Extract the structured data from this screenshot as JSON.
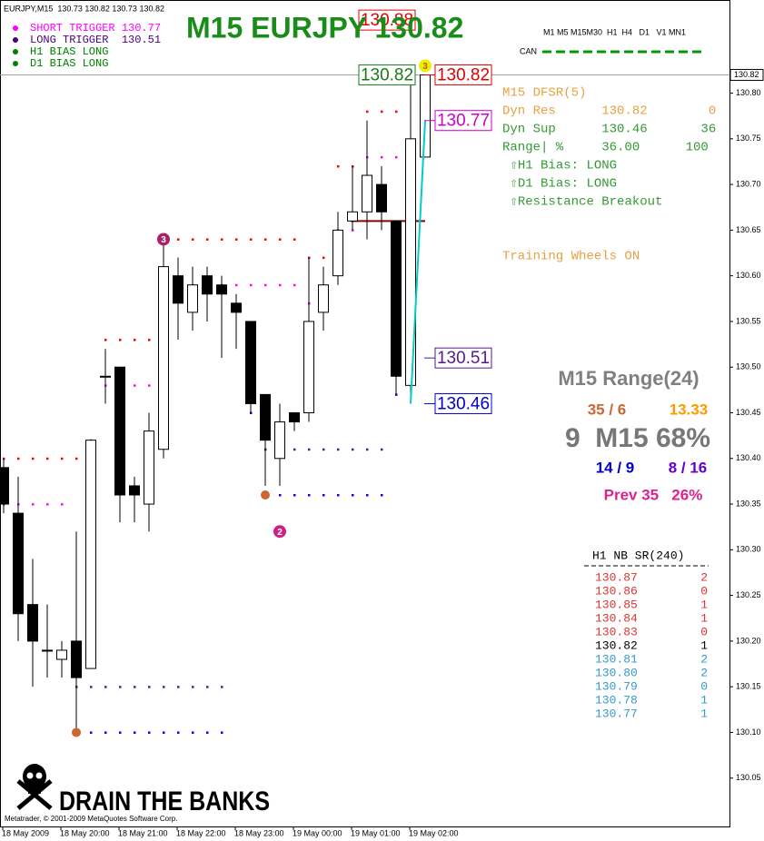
{
  "chart_data": {
    "type": "candlestick",
    "title": "M15 EURJPY 130.82",
    "header": "EURJPY,M15  130.73 130.82 130.73 130.82",
    "legend": [
      {
        "text": "SHORT TRIGGER 130.77",
        "color": "#ff00ff"
      },
      {
        "text": "LONG TRIGGER  130.51",
        "color": "#4b0082"
      },
      {
        "text": "H1 BIAS LONG",
        "color": "#008000"
      },
      {
        "text": "D1 BIAS LONG",
        "color": "#008000"
      }
    ],
    "timeframes": "M1 M5 M15M30  H1  H4   D1   V1 MN1",
    "can_label": "CAN",
    "categories": [
      "18 May 2009",
      null,
      null,
      null,
      "18 May 20:00",
      null,
      null,
      null,
      "18 May 21:00",
      null,
      null,
      null,
      "18 May 22:00",
      null,
      null,
      null,
      "18 May 23:00",
      null,
      null,
      null,
      "19 May 00:00",
      null,
      null,
      null,
      "19 May 01:00",
      null,
      null,
      null,
      "19 May 02:00",
      null
    ],
    "open": [
      130.39,
      130.34,
      130.24,
      130.19,
      130.18,
      130.2,
      130.17,
      130.49,
      130.5,
      130.37,
      130.35,
      130.41,
      130.6,
      130.56,
      130.6,
      130.59,
      130.57,
      130.55,
      130.47,
      130.4,
      130.45,
      130.45,
      130.56,
      130.6,
      130.66,
      130.67,
      130.7,
      130.66,
      130.48,
      130.73
    ],
    "high": [
      130.4,
      130.38,
      130.29,
      130.24,
      130.2,
      130.32,
      130.42,
      130.52,
      130.5,
      130.38,
      130.45,
      130.64,
      130.62,
      130.61,
      130.61,
      130.6,
      130.58,
      130.55,
      130.47,
      130.46,
      130.45,
      130.62,
      130.61,
      130.67,
      130.72,
      130.77,
      130.72,
      130.66,
      130.82,
      130.82
    ],
    "low": [
      130.34,
      130.2,
      130.15,
      130.16,
      130.16,
      130.1,
      130.17,
      130.46,
      130.33,
      130.33,
      130.32,
      130.4,
      130.53,
      130.54,
      130.55,
      130.51,
      130.52,
      130.45,
      130.37,
      130.37,
      130.43,
      130.44,
      130.54,
      130.59,
      130.65,
      130.64,
      130.65,
      130.47,
      130.46,
      130.73
    ],
    "close": [
      130.35,
      130.23,
      130.2,
      130.19,
      130.19,
      130.16,
      130.42,
      130.49,
      130.36,
      130.36,
      130.43,
      130.61,
      130.57,
      130.59,
      130.58,
      130.58,
      130.56,
      130.46,
      130.42,
      130.44,
      130.44,
      130.55,
      130.59,
      130.65,
      130.67,
      130.71,
      130.67,
      130.49,
      130.75,
      130.82
    ],
    "dot_series": [
      {
        "color": "#ff0000",
        "values": [
          130.4,
          130.4,
          130.4,
          130.4,
          130.4,
          130.4,
          130.4,
          130.53,
          130.53,
          130.53,
          130.53,
          null,
          130.64,
          130.64,
          130.64,
          130.64,
          130.64,
          130.64,
          130.64,
          130.64,
          130.64,
          130.62,
          130.62,
          130.72,
          130.72,
          130.78,
          130.78,
          130.78,
          null,
          null
        ]
      },
      {
        "color": "#ff00ff",
        "values": [
          130.35,
          130.35,
          130.35,
          130.35,
          130.35,
          null,
          130.42,
          130.48,
          130.48,
          130.48,
          130.48,
          null,
          130.59,
          130.59,
          130.59,
          130.59,
          130.59,
          130.59,
          130.59,
          130.59,
          130.59,
          130.57,
          130.57,
          130.65,
          130.65,
          130.73,
          130.73,
          130.73,
          null,
          null
        ]
      },
      {
        "color": "#551a8b",
        "values": [
          null,
          null,
          null,
          null,
          null,
          130.15,
          130.15,
          130.15,
          130.15,
          130.15,
          130.15,
          130.15,
          130.15,
          130.15,
          130.15,
          130.15,
          null,
          130.49,
          130.41,
          130.41,
          130.41,
          130.41,
          130.41,
          130.41,
          130.41,
          130.41,
          130.41,
          130.52,
          130.51,
          null
        ]
      },
      {
        "color": "#0000ff",
        "values": [
          null,
          null,
          null,
          null,
          null,
          130.1,
          130.1,
          130.1,
          130.1,
          130.1,
          130.1,
          130.1,
          130.1,
          130.1,
          130.1,
          130.1,
          null,
          130.45,
          130.36,
          130.36,
          130.36,
          130.36,
          130.36,
          130.36,
          130.36,
          130.36,
          130.36,
          130.47,
          null,
          null
        ]
      }
    ],
    "line_series": [
      {
        "color": "#00cccc",
        "values": [
          null,
          null,
          null,
          null,
          null,
          null,
          null,
          null,
          null,
          null,
          null,
          null,
          null,
          null,
          null,
          null,
          null,
          null,
          null,
          null,
          null,
          null,
          null,
          null,
          null,
          null,
          null,
          null,
          130.46,
          130.77
        ]
      }
    ],
    "markers": [
      {
        "index": 5,
        "value": 130.1,
        "color": "#cc6633"
      },
      {
        "index": 18,
        "value": 130.36,
        "color": "#cc6633"
      },
      {
        "index": 11,
        "value": 130.64,
        "color": "#aa2266",
        "label": "3"
      },
      {
        "index": 19,
        "value": 130.32,
        "color": "#cc2288",
        "label": "2"
      },
      {
        "index": 29,
        "value": 130.83,
        "color": "#eeee00",
        "label": "3"
      }
    ],
    "h_segments": [
      {
        "value": 130.66,
        "from": 24,
        "to": 29,
        "color": "#8b0000"
      }
    ],
    "last_price": 130.82,
    "price_labels": [
      {
        "value": 130.88,
        "color": "#e00000",
        "side": "left"
      },
      {
        "value": 130.82,
        "color": "#1a7a1a",
        "side": "left"
      },
      {
        "value": 130.82,
        "color": "#e00000",
        "side": "right"
      },
      {
        "value": 130.77,
        "color": "#cc00cc",
        "side": "right"
      },
      {
        "value": 130.51,
        "color": "#551a8b",
        "side": "right"
      },
      {
        "value": 130.46,
        "color": "#0000cc",
        "side": "right"
      }
    ],
    "info_panel": [
      {
        "text": "M15 DFSR(5)",
        "color": "#e8a040"
      },
      {
        "text": "Dyn Res      130.82        0",
        "color": "#e8a040"
      },
      {
        "text": "Dyn Sup      130.46       36",
        "color": "#339933"
      },
      {
        "text": "Range| %     36.00      100",
        "color": "#339933"
      },
      {
        "text": " ⇧H1 Bias: LONG",
        "color": "#339933"
      },
      {
        "text": " ⇧D1 Bias: LONG",
        "color": "#339933"
      },
      {
        "text": " ⇧Resistance Breakout",
        "color": "#339933"
      }
    ],
    "training": "Training Wheels ON",
    "range_panel": {
      "title": "M15 Range(24)",
      "row1": [
        "35 / 6",
        "13.33"
      ],
      "main": "9  M15 68%",
      "row2": [
        "14 / 9",
        "8 / 16"
      ],
      "prev": "Prev 35   26%"
    },
    "sr_table": {
      "title": "H1 NB SR(240)",
      "rows": [
        [
          "130.87",
          2,
          "#e03030"
        ],
        [
          "130.86",
          0,
          "#e03030"
        ],
        [
          "130.85",
          1,
          "#e03030"
        ],
        [
          "130.84",
          1,
          "#e03030"
        ],
        [
          "130.83",
          0,
          "#e03030"
        ],
        [
          "130.82",
          1,
          "#000000"
        ],
        [
          "130.81",
          2,
          "#3399cc"
        ],
        [
          "130.80",
          2,
          "#3399cc"
        ],
        [
          "130.79",
          0,
          "#3399cc"
        ],
        [
          "130.78",
          1,
          "#3399cc"
        ],
        [
          "130.77",
          1,
          "#3399cc"
        ]
      ]
    },
    "logo": "DRAIN THE BANKS",
    "copyright": "Metatrader, © 2001-2009 MetaQuotes Software Corp.",
    "ylim": [
      130.0,
      130.9
    ],
    "yticks": [
      130.05,
      {
        "value": 130.1,
        "label": "130.10"
      },
      130.15,
      {
        "value": 130.2,
        "label": "130.20"
      },
      130.25,
      {
        "value": 130.3,
        "label": "130.30"
      },
      130.35,
      {
        "value": 130.4,
        "label": "130.40"
      },
      130.45,
      {
        "value": 130.5,
        "label": "130.50"
      },
      130.55,
      {
        "value": 130.6,
        "label": "130.60"
      },
      130.65,
      {
        "value": 130.7,
        "label": "130.70"
      },
      130.75,
      {
        "value": 130.8,
        "label": "130.80"
      }
    ]
  }
}
